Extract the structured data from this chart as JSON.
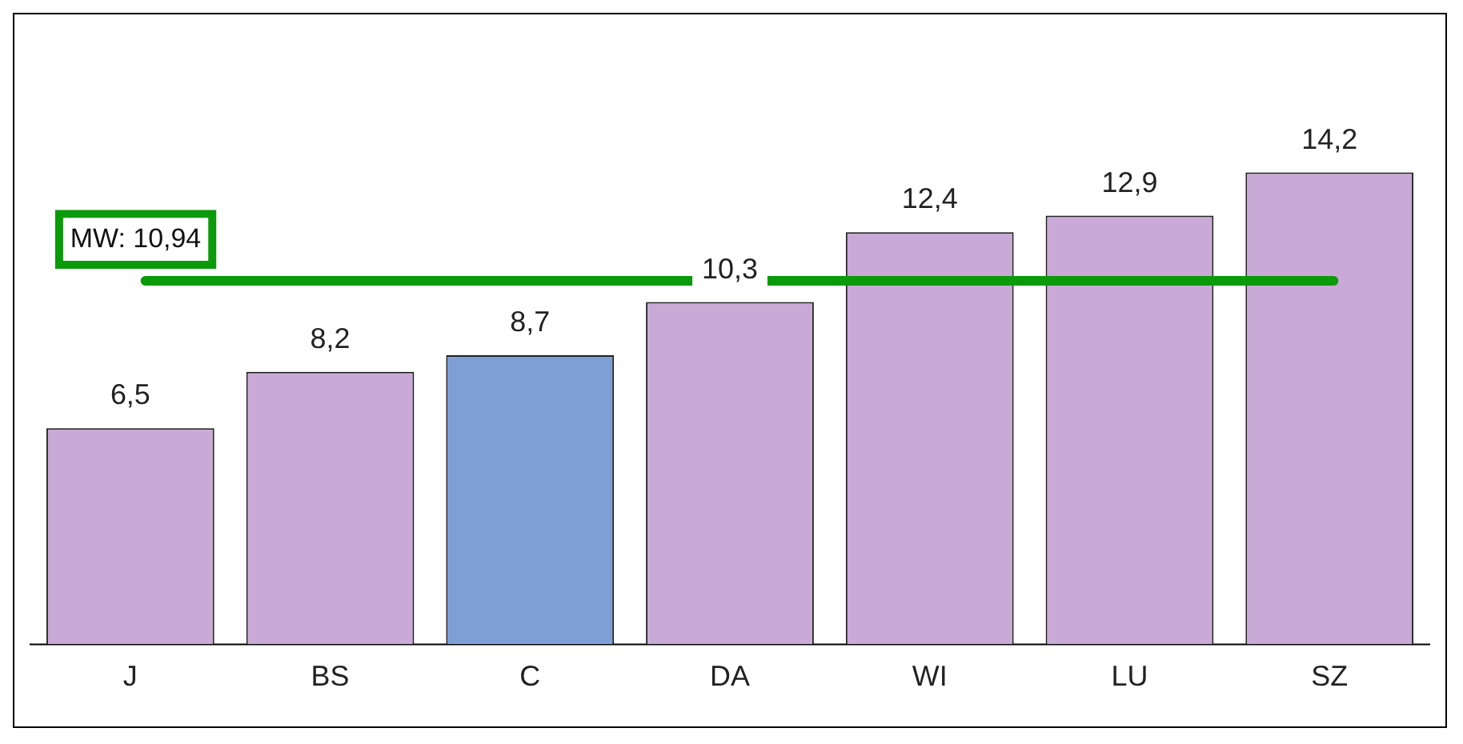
{
  "chart_data": {
    "type": "bar",
    "categories": [
      "J",
      "BS",
      "C",
      "DA",
      "WI",
      "LU",
      "SZ"
    ],
    "values": [
      6.5,
      8.2,
      8.7,
      10.3,
      12.4,
      12.9,
      14.2
    ],
    "value_labels": [
      "6,5",
      "8,2",
      "8,7",
      "10,3",
      "12,4",
      "12,9",
      "14,2"
    ],
    "colors": [
      "#c9a9d6",
      "#c9a9d6",
      "#7d9fd6",
      "#c9a9d6",
      "#c9a9d6",
      "#c9a9d6",
      "#c9a9d6"
    ],
    "ref_lines": [
      {
        "axis": "y",
        "value": 10.94,
        "label": "MW: 10,94",
        "color": "#0a9a0a"
      }
    ],
    "grid": false,
    "legend": false
  }
}
